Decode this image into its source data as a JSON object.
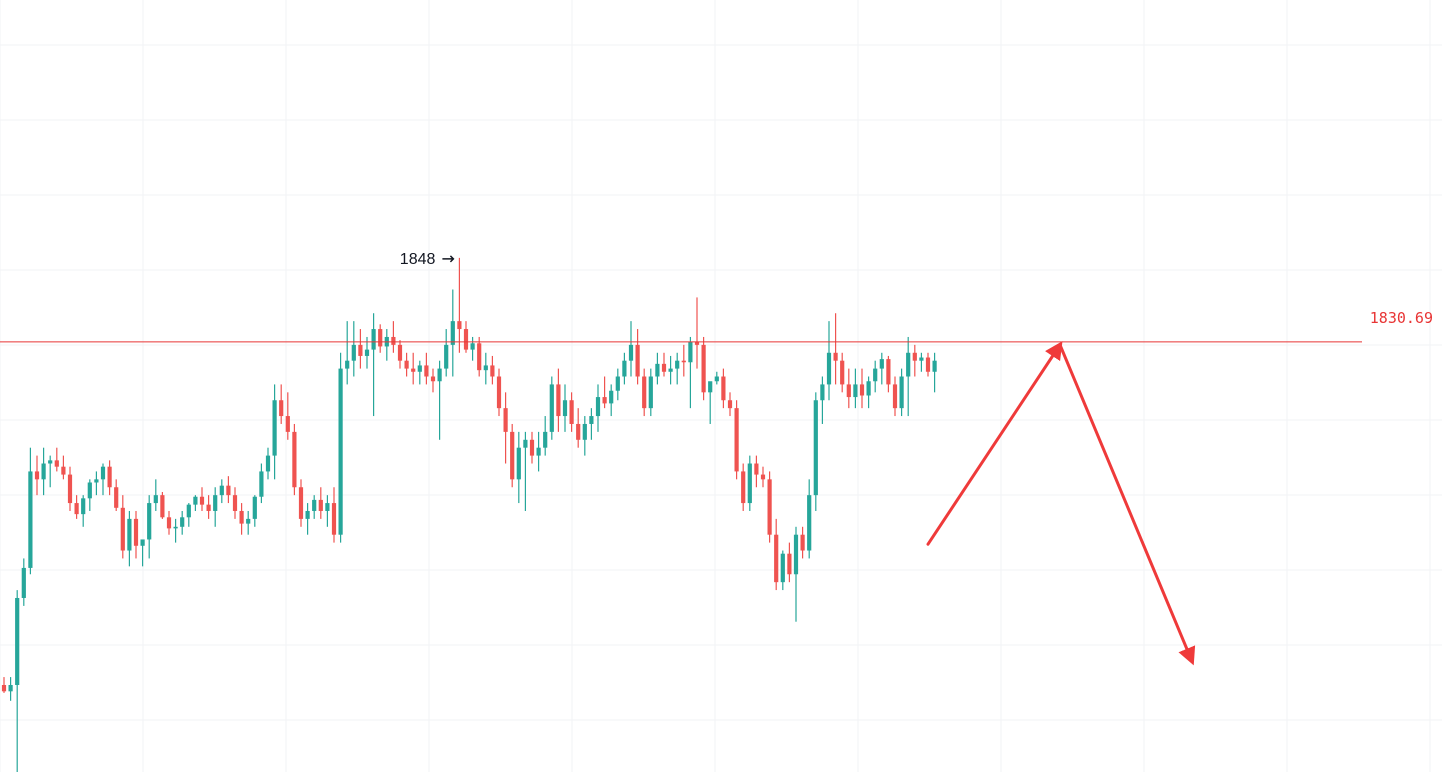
{
  "chart_data": {
    "type": "candlestick",
    "title": "",
    "xlabel": "",
    "ylabel": "",
    "ylim": [
      1803.5,
      1852.3
    ],
    "grid": true,
    "colors": {
      "up": "#26a69a",
      "down": "#ef5350",
      "line": "#e83535",
      "arrow": "#ef3a3a",
      "text": "#131722"
    },
    "horizontal_line": {
      "value": 1830.69,
      "label": "1830.69"
    },
    "high_annotation": {
      "label": "1848",
      "value": 1848
    },
    "projection": [
      {
        "from_index": 140,
        "from_price": 1817.9,
        "to_index": 160,
        "to_price": 1830.5
      },
      {
        "from_index": 160,
        "from_price": 1830.5,
        "to_index": 180,
        "to_price": 1810.5
      }
    ],
    "candles": [
      [
        1809.0,
        1809.5,
        1808.5,
        1808.6
      ],
      [
        1808.6,
        1809.5,
        1808.0,
        1809.0
      ],
      [
        1809.0,
        1815.0,
        1803.5,
        1814.5
      ],
      [
        1814.5,
        1817.0,
        1814.0,
        1816.4
      ],
      [
        1816.4,
        1824.0,
        1816.0,
        1822.5
      ],
      [
        1822.5,
        1823.5,
        1821.0,
        1822.0
      ],
      [
        1822.0,
        1824.0,
        1821.0,
        1823.0
      ],
      [
        1823.0,
        1823.5,
        1821.5,
        1823.2
      ],
      [
        1823.2,
        1824.0,
        1822.5,
        1822.8
      ],
      [
        1822.8,
        1823.5,
        1822.0,
        1822.3
      ],
      [
        1822.3,
        1822.8,
        1820.0,
        1820.5
      ],
      [
        1820.5,
        1821.0,
        1819.5,
        1819.8
      ],
      [
        1819.8,
        1821.0,
        1819.0,
        1820.8
      ],
      [
        1820.8,
        1822.0,
        1820.0,
        1821.8
      ],
      [
        1821.8,
        1822.5,
        1821.0,
        1822.0
      ],
      [
        1822.0,
        1823.0,
        1821.0,
        1822.8
      ],
      [
        1822.8,
        1823.2,
        1821.0,
        1821.5
      ],
      [
        1821.5,
        1822.0,
        1820.0,
        1820.2
      ],
      [
        1820.2,
        1821.0,
        1817.0,
        1817.5
      ],
      [
        1817.5,
        1820.0,
        1816.5,
        1819.5
      ],
      [
        1819.5,
        1820.0,
        1817.0,
        1817.8
      ],
      [
        1817.8,
        1818.0,
        1816.5,
        1818.2
      ],
      [
        1818.2,
        1821.0,
        1817.0,
        1820.5
      ],
      [
        1820.5,
        1822.0,
        1820.0,
        1821.0
      ],
      [
        1821.0,
        1821.2,
        1819.5,
        1819.6
      ],
      [
        1819.6,
        1820.0,
        1818.5,
        1818.9
      ],
      [
        1818.9,
        1819.5,
        1818.0,
        1819.0
      ],
      [
        1819.0,
        1820.0,
        1818.5,
        1819.6
      ],
      [
        1819.6,
        1820.5,
        1819.0,
        1820.4
      ],
      [
        1820.4,
        1821.0,
        1820.0,
        1820.9
      ],
      [
        1820.9,
        1821.5,
        1820.0,
        1820.4
      ],
      [
        1820.4,
        1821.0,
        1819.5,
        1820.0
      ],
      [
        1820.0,
        1821.5,
        1819.0,
        1821.0
      ],
      [
        1821.0,
        1822.0,
        1820.5,
        1821.6
      ],
      [
        1821.6,
        1822.2,
        1820.5,
        1821.0
      ],
      [
        1821.0,
        1821.5,
        1819.5,
        1820.0
      ],
      [
        1820.0,
        1820.5,
        1818.5,
        1819.2
      ],
      [
        1819.2,
        1820.0,
        1818.5,
        1819.5
      ],
      [
        1819.5,
        1821.0,
        1819.0,
        1820.9
      ],
      [
        1820.9,
        1823.0,
        1820.5,
        1822.5
      ],
      [
        1822.5,
        1824.0,
        1822.0,
        1823.5
      ],
      [
        1823.5,
        1828.0,
        1822.0,
        1827.0
      ],
      [
        1827.0,
        1828.0,
        1825.5,
        1826.0
      ],
      [
        1826.0,
        1827.5,
        1824.5,
        1825.0
      ],
      [
        1825.0,
        1825.5,
        1821.0,
        1821.5
      ],
      [
        1821.5,
        1822.0,
        1819.0,
        1819.5
      ],
      [
        1819.5,
        1820.5,
        1818.5,
        1820.0
      ],
      [
        1820.0,
        1821.0,
        1819.5,
        1820.7
      ],
      [
        1820.7,
        1821.5,
        1819.5,
        1820.0
      ],
      [
        1820.0,
        1821.0,
        1819.0,
        1820.5
      ],
      [
        1820.5,
        1821.5,
        1818.0,
        1818.5
      ],
      [
        1818.5,
        1830.0,
        1818.0,
        1829.0
      ],
      [
        1829.0,
        1832.0,
        1828.0,
        1829.5
      ],
      [
        1829.5,
        1832.0,
        1828.5,
        1830.5
      ],
      [
        1830.5,
        1831.5,
        1829.0,
        1829.8
      ],
      [
        1829.8,
        1831.0,
        1829.0,
        1830.2
      ],
      [
        1830.2,
        1832.5,
        1826.0,
        1831.5
      ],
      [
        1831.5,
        1831.8,
        1830.0,
        1830.4
      ],
      [
        1830.4,
        1831.5,
        1829.5,
        1831.0
      ],
      [
        1831.0,
        1832.0,
        1830.0,
        1830.5
      ],
      [
        1830.5,
        1830.8,
        1829.0,
        1829.5
      ],
      [
        1829.5,
        1830.0,
        1828.5,
        1829.0
      ],
      [
        1829.0,
        1830.0,
        1828.0,
        1828.8
      ],
      [
        1828.8,
        1829.5,
        1828.0,
        1829.2
      ],
      [
        1829.2,
        1830.0,
        1828.0,
        1828.5
      ],
      [
        1828.5,
        1829.0,
        1827.5,
        1828.2
      ],
      [
        1828.2,
        1829.5,
        1824.5,
        1829.0
      ],
      [
        1829.0,
        1831.5,
        1828.5,
        1830.5
      ],
      [
        1830.5,
        1834.0,
        1828.5,
        1832.0
      ],
      [
        1832.0,
        1836.0,
        1830.0,
        1831.5
      ],
      [
        1831.5,
        1832.0,
        1830.0,
        1830.2
      ],
      [
        1830.2,
        1831.0,
        1829.5,
        1830.6
      ],
      [
        1830.6,
        1831.0,
        1828.5,
        1828.9
      ],
      [
        1828.9,
        1830.0,
        1828.0,
        1829.2
      ],
      [
        1829.2,
        1829.8,
        1828.0,
        1828.5
      ],
      [
        1828.5,
        1829.0,
        1826.0,
        1826.5
      ],
      [
        1826.5,
        1827.5,
        1823.0,
        1825.0
      ],
      [
        1825.0,
        1825.5,
        1821.5,
        1822.0
      ],
      [
        1822.0,
        1825.0,
        1820.5,
        1824.0
      ],
      [
        1824.0,
        1825.0,
        1820.0,
        1824.5
      ],
      [
        1824.5,
        1825.0,
        1823.0,
        1823.5
      ],
      [
        1823.5,
        1825.0,
        1822.5,
        1824.0
      ],
      [
        1824.0,
        1826.0,
        1823.5,
        1825.0
      ],
      [
        1825.0,
        1828.5,
        1824.5,
        1828.0
      ],
      [
        1828.0,
        1829.0,
        1825.0,
        1826.0
      ],
      [
        1826.0,
        1828.0,
        1825.0,
        1827.0
      ],
      [
        1827.0,
        1827.5,
        1825.0,
        1825.5
      ],
      [
        1825.5,
        1826.5,
        1824.0,
        1824.5
      ],
      [
        1824.5,
        1826.0,
        1823.5,
        1825.5
      ],
      [
        1825.5,
        1826.5,
        1824.5,
        1826.0
      ],
      [
        1826.0,
        1828.0,
        1825.0,
        1827.2
      ],
      [
        1827.2,
        1828.5,
        1826.5,
        1826.8
      ],
      [
        1826.8,
        1828.0,
        1826.0,
        1827.6
      ],
      [
        1827.6,
        1829.0,
        1827.0,
        1828.5
      ],
      [
        1828.5,
        1830.0,
        1828.0,
        1829.5
      ],
      [
        1829.5,
        1832.0,
        1828.5,
        1830.5
      ],
      [
        1830.5,
        1831.5,
        1828.0,
        1828.5
      ],
      [
        1828.5,
        1829.0,
        1826.0,
        1826.5
      ],
      [
        1826.5,
        1829.0,
        1826.0,
        1828.5
      ],
      [
        1828.5,
        1830.0,
        1828.0,
        1829.3
      ],
      [
        1829.3,
        1830.0,
        1828.5,
        1828.8
      ],
      [
        1828.8,
        1829.8,
        1828.0,
        1829.0
      ],
      [
        1829.0,
        1830.0,
        1828.0,
        1829.5
      ],
      [
        1829.5,
        1830.5,
        1828.5,
        1829.4
      ],
      [
        1829.4,
        1831.0,
        1826.5,
        1830.7
      ],
      [
        1830.7,
        1833.5,
        1829.0,
        1830.5
      ],
      [
        1830.5,
        1831.0,
        1827.0,
        1827.5
      ],
      [
        1827.5,
        1828.0,
        1825.5,
        1828.2
      ],
      [
        1828.2,
        1828.8,
        1828.0,
        1828.5
      ],
      [
        1828.5,
        1829.0,
        1826.5,
        1827.0
      ],
      [
        1827.0,
        1827.5,
        1826.0,
        1826.5
      ],
      [
        1826.5,
        1827.0,
        1822.0,
        1822.5
      ],
      [
        1822.5,
        1823.0,
        1820.0,
        1820.5
      ],
      [
        1820.5,
        1823.5,
        1820.0,
        1823.0
      ],
      [
        1823.0,
        1823.5,
        1821.5,
        1822.3
      ],
      [
        1822.3,
        1822.8,
        1821.5,
        1822.0
      ],
      [
        1822.0,
        1822.5,
        1818.0,
        1818.5
      ],
      [
        1818.5,
        1819.5,
        1815.0,
        1815.5
      ],
      [
        1815.5,
        1817.5,
        1815.0,
        1817.3
      ],
      [
        1817.3,
        1818.0,
        1815.5,
        1816.0
      ],
      [
        1816.0,
        1819.0,
        1813.0,
        1818.5
      ],
      [
        1818.5,
        1819.0,
        1817.0,
        1817.5
      ],
      [
        1817.5,
        1822.0,
        1817.0,
        1821.0
      ],
      [
        1821.0,
        1827.5,
        1820.0,
        1827.0
      ],
      [
        1827.0,
        1828.5,
        1825.5,
        1828.0
      ],
      [
        1828.0,
        1832.0,
        1827.0,
        1830.0
      ],
      [
        1830.0,
        1832.5,
        1828.0,
        1829.5
      ],
      [
        1829.5,
        1830.0,
        1827.5,
        1828.0
      ],
      [
        1828.0,
        1829.0,
        1826.5,
        1827.2
      ],
      [
        1827.2,
        1829.0,
        1826.5,
        1828.0
      ],
      [
        1828.0,
        1829.0,
        1826.5,
        1827.3
      ],
      [
        1827.3,
        1828.5,
        1826.5,
        1828.2
      ],
      [
        1828.2,
        1829.5,
        1827.5,
        1829.0
      ],
      [
        1829.0,
        1830.0,
        1828.0,
        1829.6
      ],
      [
        1829.6,
        1829.8,
        1827.5,
        1828.0
      ],
      [
        1828.0,
        1828.5,
        1826.0,
        1826.5
      ],
      [
        1826.5,
        1829.0,
        1826.0,
        1828.5
      ],
      [
        1828.5,
        1831.0,
        1826.0,
        1830.0
      ],
      [
        1830.0,
        1830.5,
        1828.5,
        1829.5
      ],
      [
        1829.5,
        1830.0,
        1828.8,
        1829.7
      ],
      [
        1829.7,
        1830.0,
        1828.5,
        1828.8
      ],
      [
        1828.8,
        1830.0,
        1827.5,
        1829.5
      ]
    ]
  }
}
